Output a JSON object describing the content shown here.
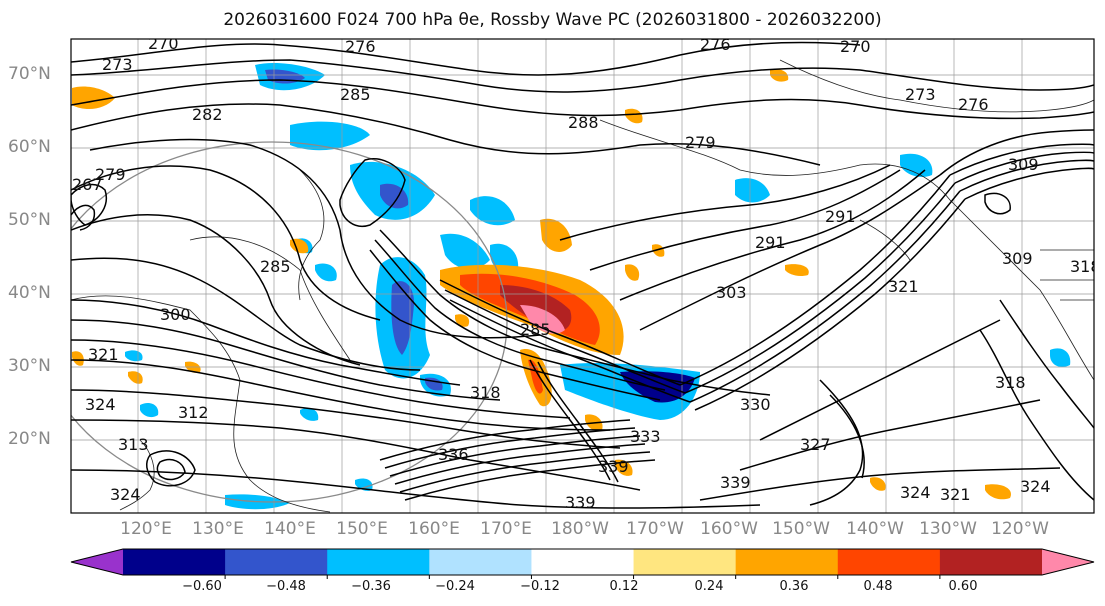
{
  "title": "2026031600 F024 700 hPa θe, Rossby Wave PC (2026031800 - 2026032200)",
  "lat_labels": [
    "70°N",
    "60°N",
    "50°N",
    "40°N",
    "30°N",
    "20°N"
  ],
  "lon_labels": [
    "120°E",
    "130°E",
    "140°E",
    "150°E",
    "160°E",
    "170°E",
    "180°W",
    "170°W",
    "160°W",
    "150°W",
    "140°W",
    "130°W",
    "120°W"
  ],
  "colorbar": {
    "colors": [
      "#9932cc",
      "#00008b",
      "#3355cc",
      "#00bfff",
      "#b0e2ff",
      "#ffffff",
      "#ffe680",
      "#ffa500",
      "#ff4500",
      "#b22222",
      "#ff88aa"
    ],
    "tick_labels": [
      "−0.60",
      "−0.48",
      "−0.36",
      "−0.24",
      "−0.12",
      "0.12",
      "0.24",
      "0.36",
      "0.48",
      "0.60"
    ]
  },
  "contour_labels": [
    "270",
    "276",
    "276",
    "270",
    "273",
    "285",
    "288",
    "282",
    "279",
    "273",
    "276",
    "309",
    "267",
    "279",
    "285",
    "291",
    "291",
    "303",
    "321",
    "309",
    "300",
    "321",
    "324",
    "312",
    "318",
    "313",
    "318",
    "324",
    "333",
    "336",
    "339",
    "339",
    "330",
    "327",
    "339",
    "324",
    "321",
    "324",
    "285",
    "318"
  ]
}
